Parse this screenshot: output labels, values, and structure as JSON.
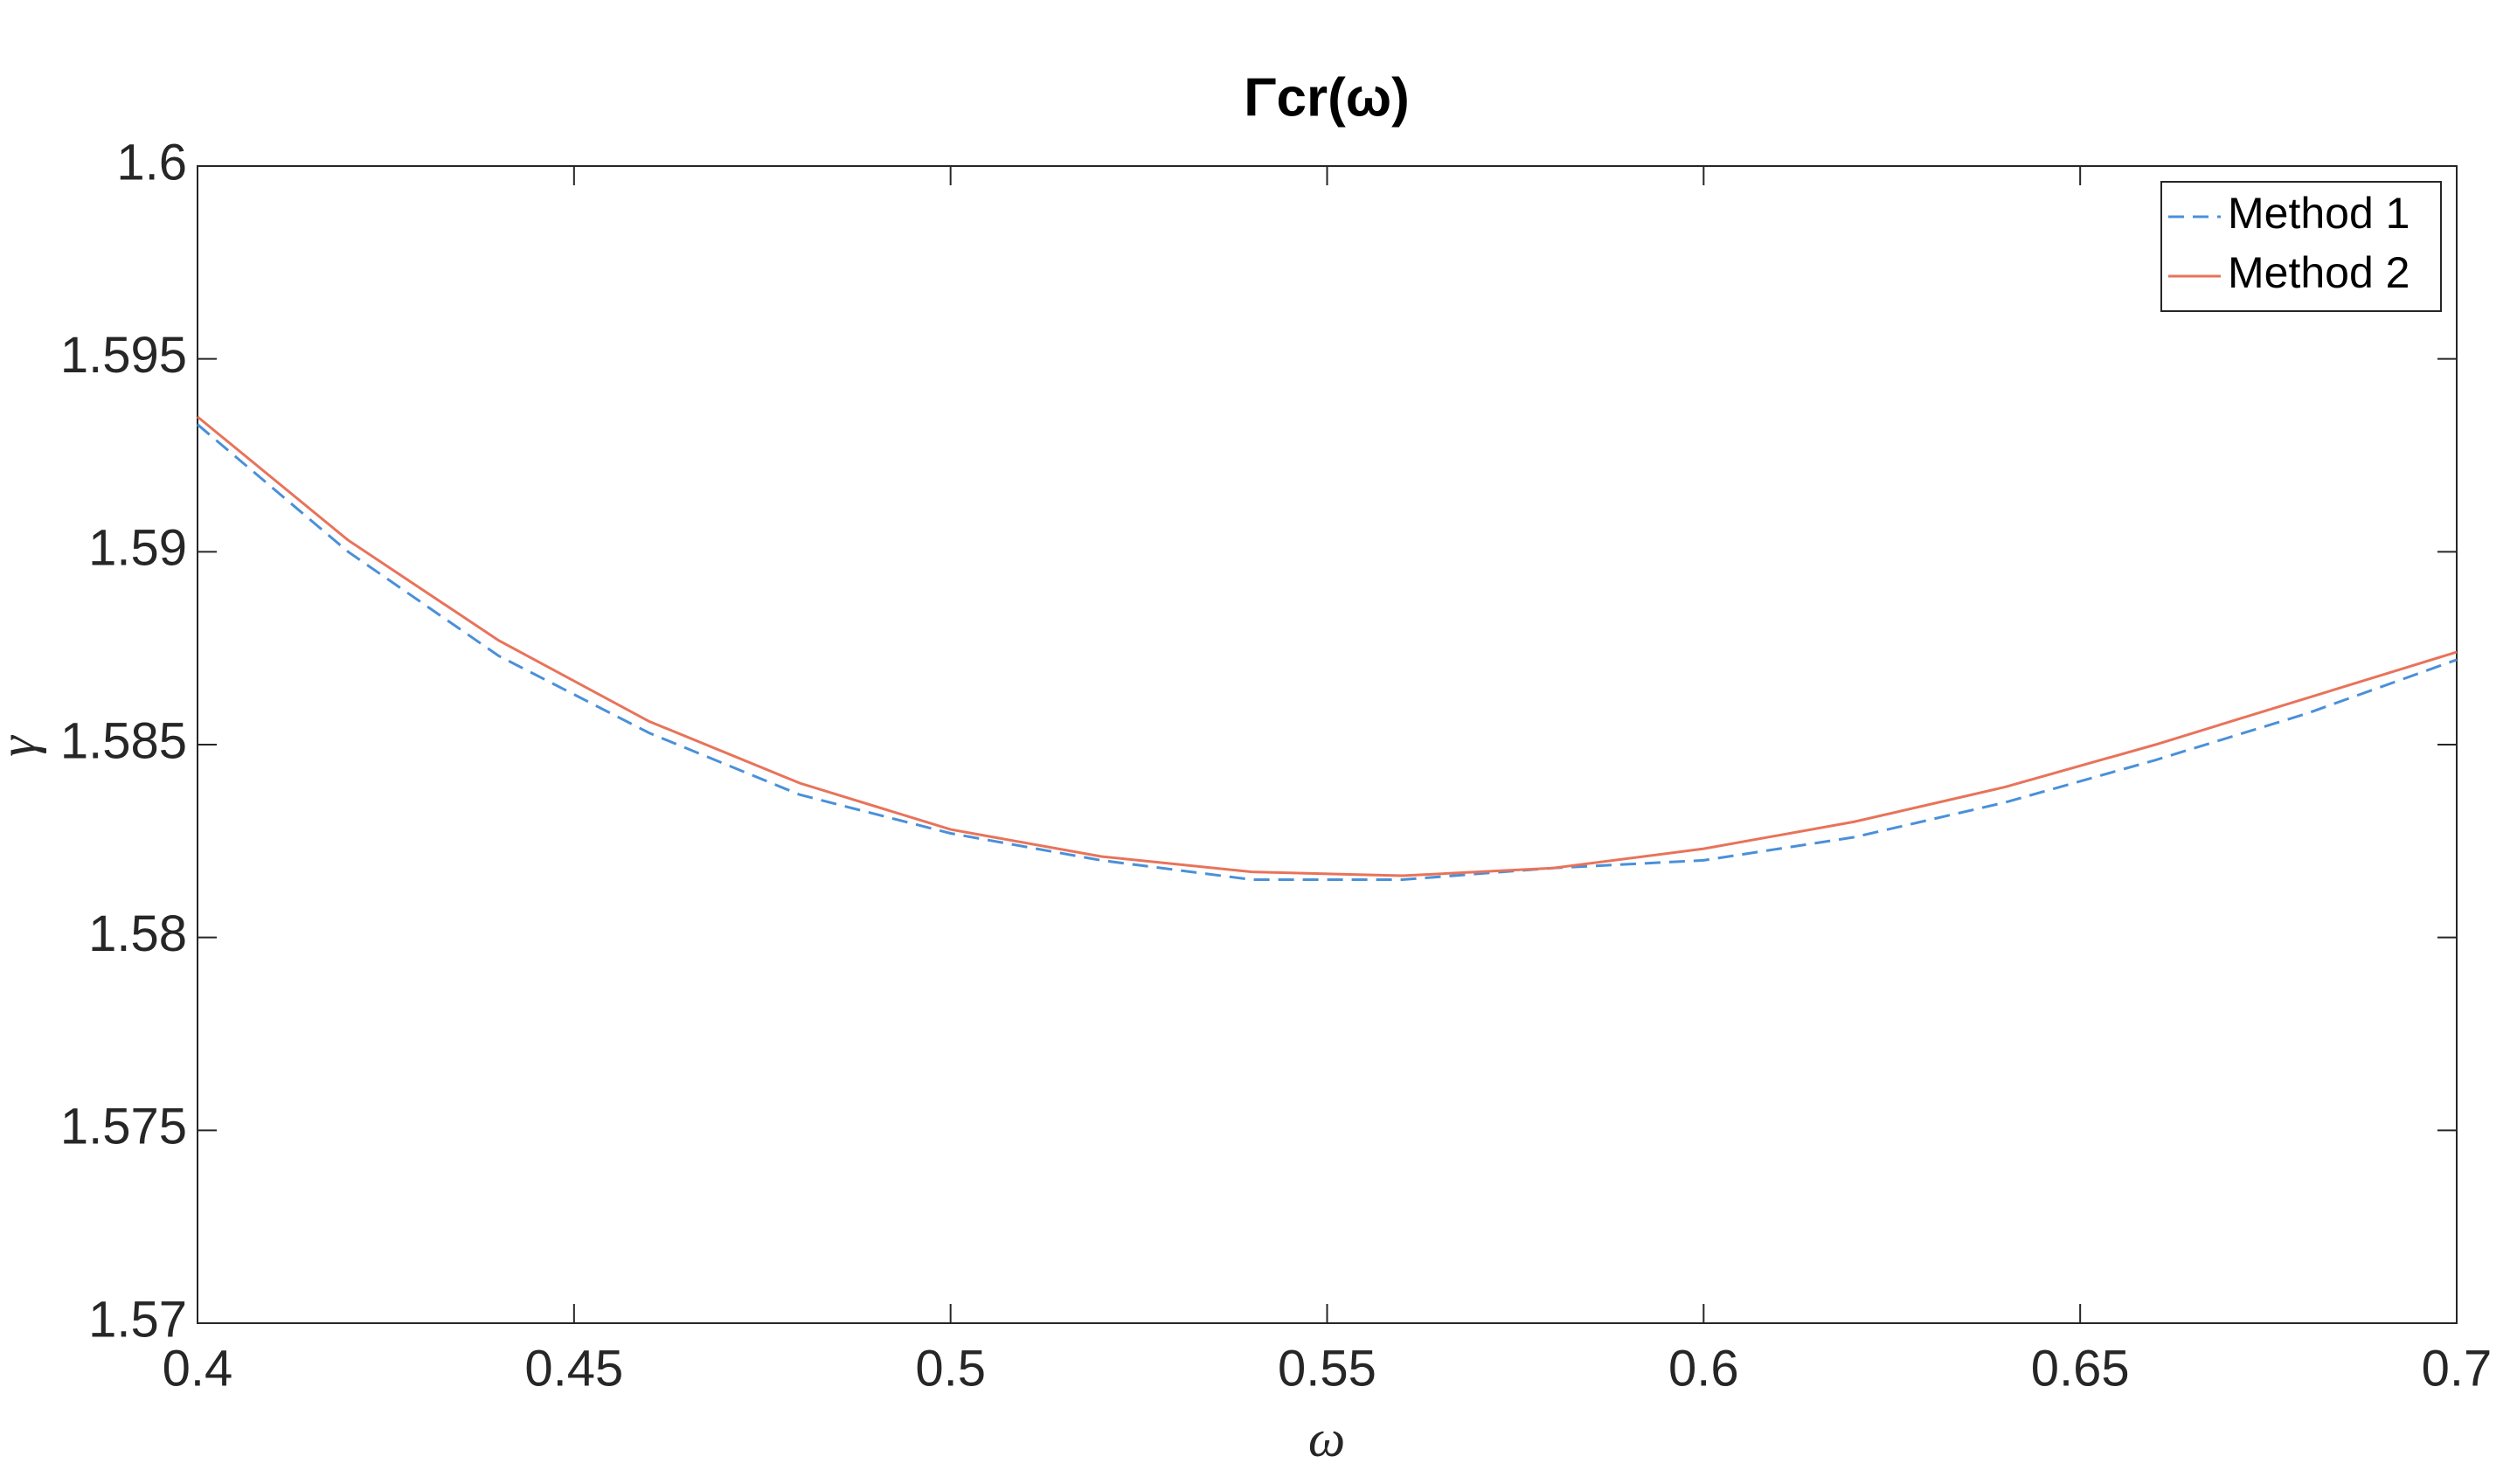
{
  "chart_data": {
    "type": "line",
    "title": "Γcr(ω)",
    "xlabel": "ω",
    "ylabel": "γ",
    "x": [
      0.4,
      0.42,
      0.44,
      0.46,
      0.48,
      0.5,
      0.52,
      0.54,
      0.56,
      0.58,
      0.6,
      0.62,
      0.64,
      0.66,
      0.68,
      0.7
    ],
    "series": [
      {
        "name": "Method 1",
        "color": "#4a90d9",
        "linestyle": "--",
        "values": [
          1.5933,
          1.59,
          1.5873,
          1.5853,
          1.5837,
          1.5827,
          1.582,
          1.5815,
          1.5815,
          1.5818,
          1.582,
          1.5826,
          1.5835,
          1.5846,
          1.5858,
          1.5872
        ]
      },
      {
        "name": "Method 2",
        "color": "#e8735a",
        "linestyle": "-",
        "values": [
          1.5935,
          1.5903,
          1.5877,
          1.5856,
          1.584,
          1.5828,
          1.5821,
          1.5817,
          1.5816,
          1.5818,
          1.5823,
          1.583,
          1.5839,
          1.585,
          1.5862,
          1.5874
        ]
      }
    ],
    "xlim": [
      0.4,
      0.7
    ],
    "xticks": [
      0.4,
      0.45,
      0.5,
      0.55,
      0.6,
      0.65,
      0.7
    ],
    "ylim": [
      1.57,
      1.6
    ],
    "yticks": [
      1.57,
      1.575,
      1.58,
      1.585,
      1.59,
      1.595,
      1.6
    ],
    "grid": false,
    "legend": "northeast"
  }
}
